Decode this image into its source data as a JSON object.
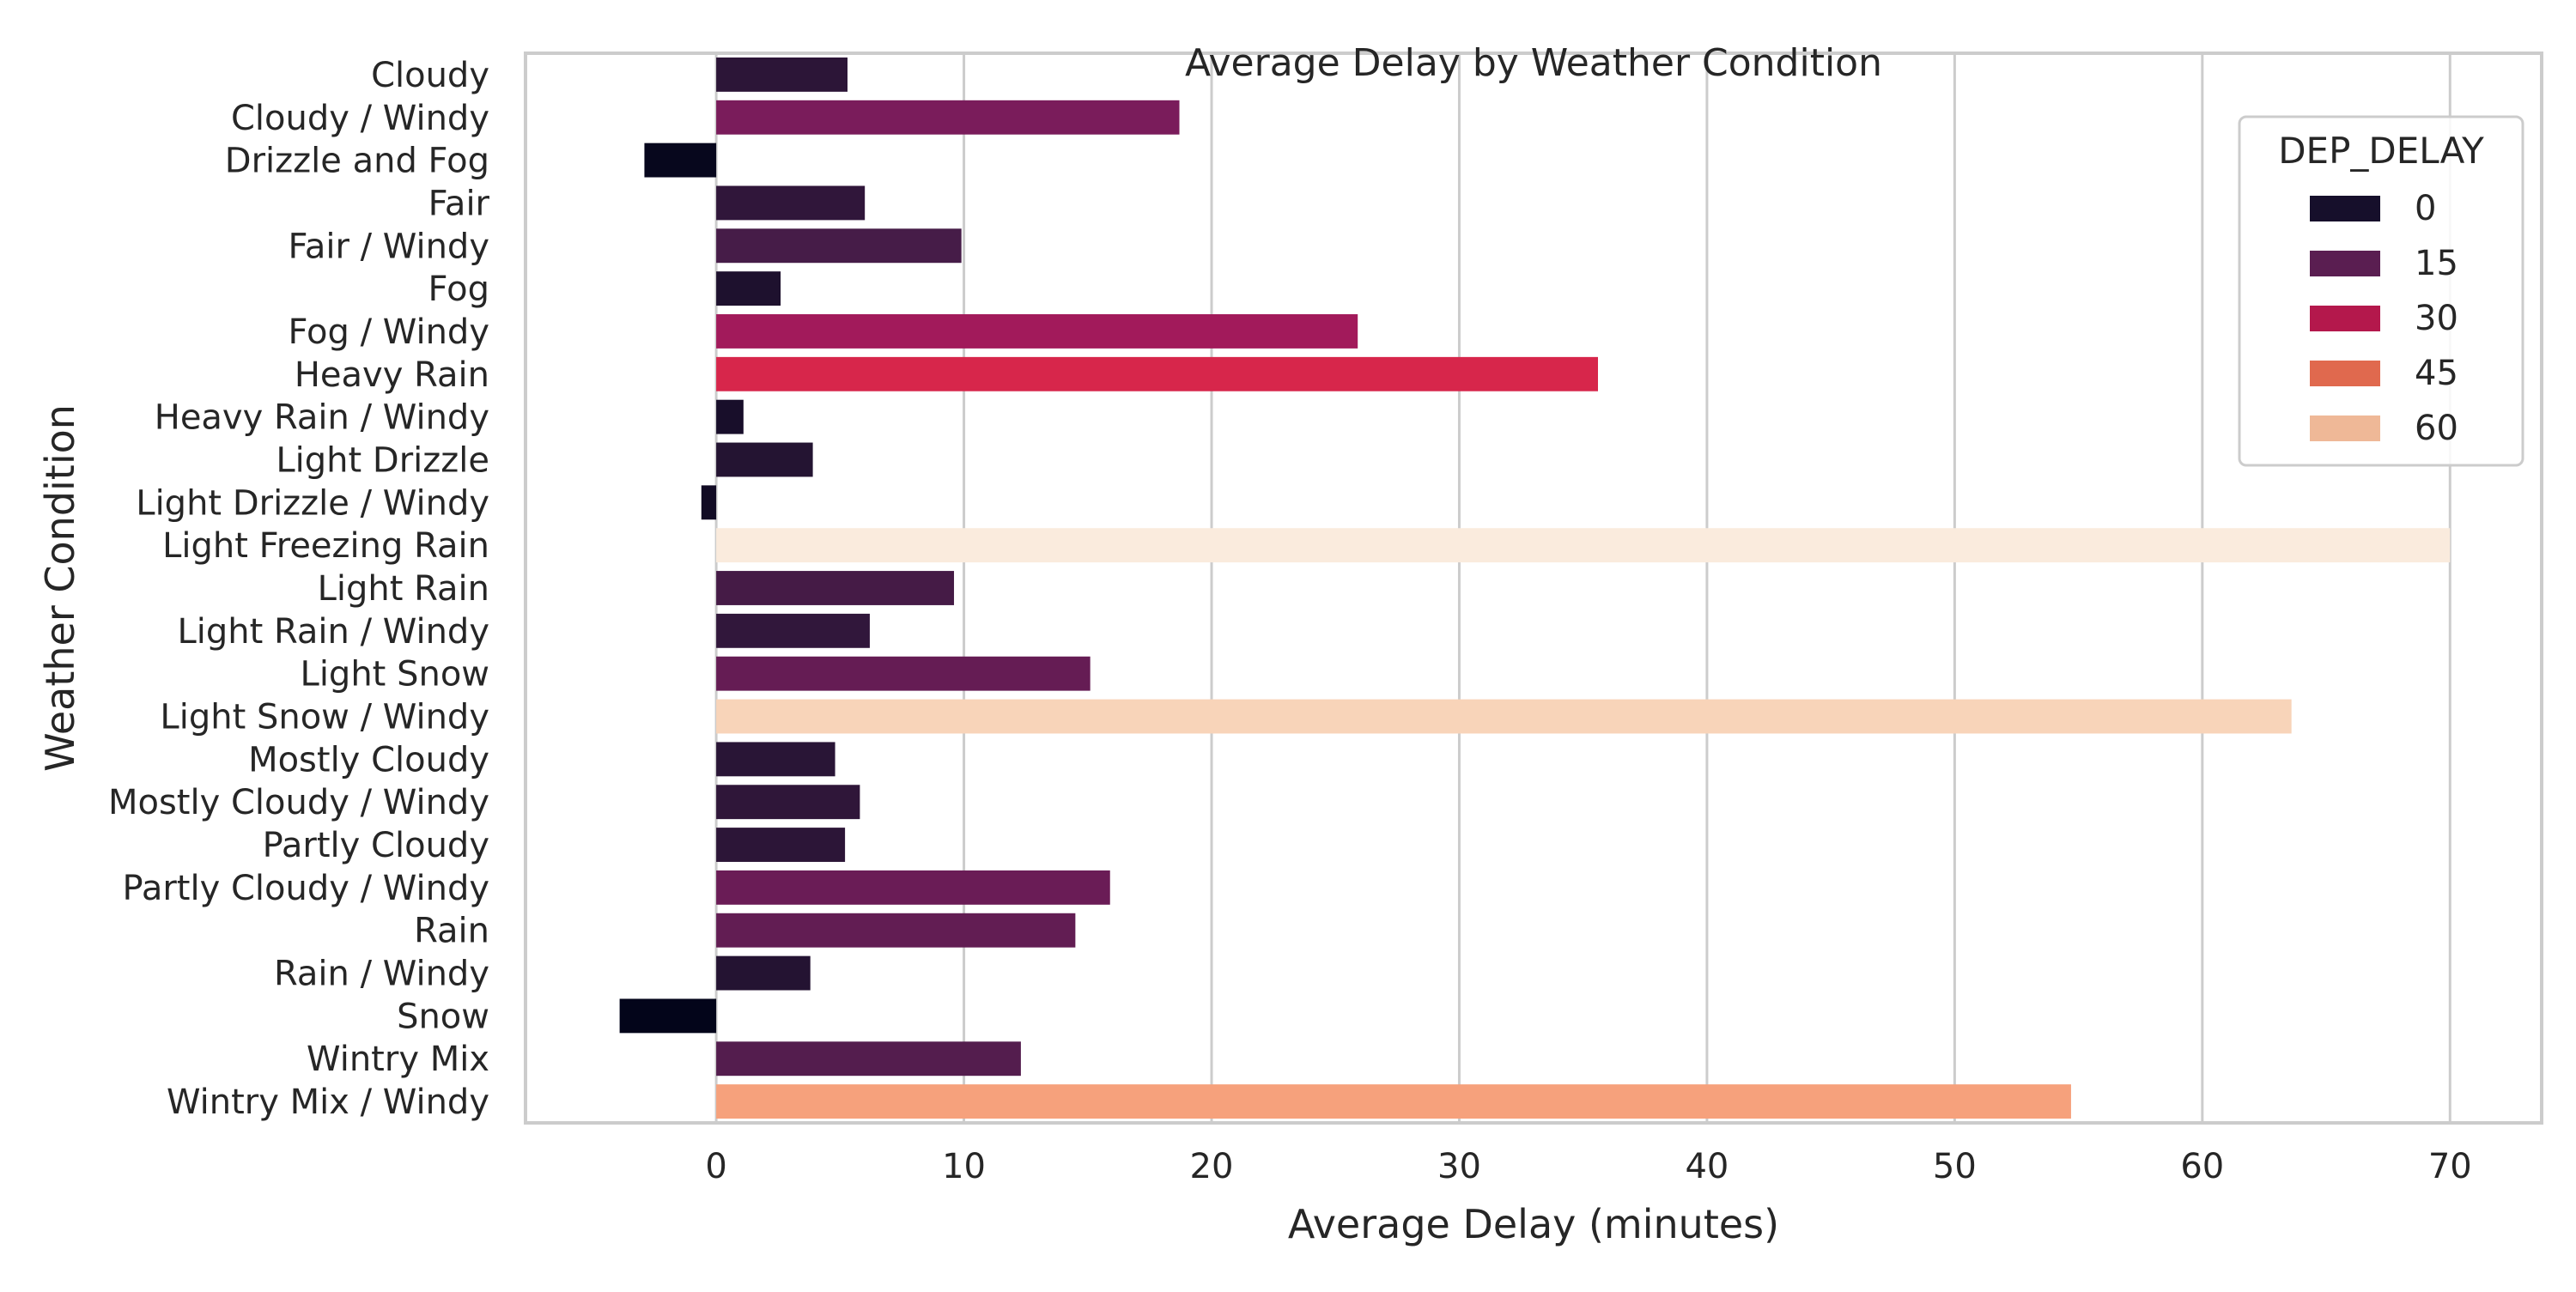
{
  "chart_data": {
    "type": "bar",
    "orientation": "horizontal",
    "title": "Average Delay by Weather Condition",
    "xlabel": "Average Delay (minutes)",
    "ylabel": "Weather Condition",
    "xlim": [
      -7.7,
      73.7
    ],
    "xticks": [
      0,
      10,
      20,
      30,
      40,
      50,
      60,
      70
    ],
    "grid": "vertical",
    "categories": [
      "Cloudy",
      "Cloudy / Windy",
      "Drizzle and Fog",
      "Fair",
      "Fair / Windy",
      "Fog",
      "Fog / Windy",
      "Heavy Rain",
      "Heavy Rain / Windy",
      "Light Drizzle",
      "Light Drizzle / Windy",
      "Light Freezing Rain",
      "Light Rain",
      "Light Rain / Windy",
      "Light Snow",
      "Light Snow / Windy",
      "Mostly Cloudy",
      "Mostly Cloudy / Windy",
      "Partly Cloudy",
      "Partly Cloudy / Windy",
      "Rain",
      "Rain / Windy",
      "Snow",
      "Wintry Mix",
      "Wintry Mix / Windy"
    ],
    "values": [
      5.3,
      18.7,
      -2.9,
      6.0,
      9.9,
      2.6,
      25.9,
      35.6,
      1.1,
      3.9,
      -0.6,
      70.0,
      9.6,
      6.2,
      15.1,
      63.6,
      4.8,
      5.8,
      5.2,
      15.9,
      14.5,
      3.8,
      -3.9,
      12.3,
      54.7
    ],
    "color_scale": {
      "name": "rocket",
      "domain": [
        -3.9,
        70.0
      ],
      "stops": [
        "#03051a",
        "#221331",
        "#4c1d4b",
        "#781c5b",
        "#a11a5b",
        "#cb1b4f",
        "#ed3a43",
        "#f6704d",
        "#f6a580",
        "#f8d1b4",
        "#faebdd"
      ]
    },
    "legend": {
      "title": "DEP_DELAY",
      "placement": "upper-right",
      "entries": [
        {
          "label": "0",
          "color": "#160f2b"
        },
        {
          "label": "15",
          "color": "#5a1e51"
        },
        {
          "label": "30",
          "color": "#b4184c"
        },
        {
          "label": "45",
          "color": "#e0694e"
        },
        {
          "label": "60",
          "color": "#efb897"
        }
      ]
    }
  }
}
